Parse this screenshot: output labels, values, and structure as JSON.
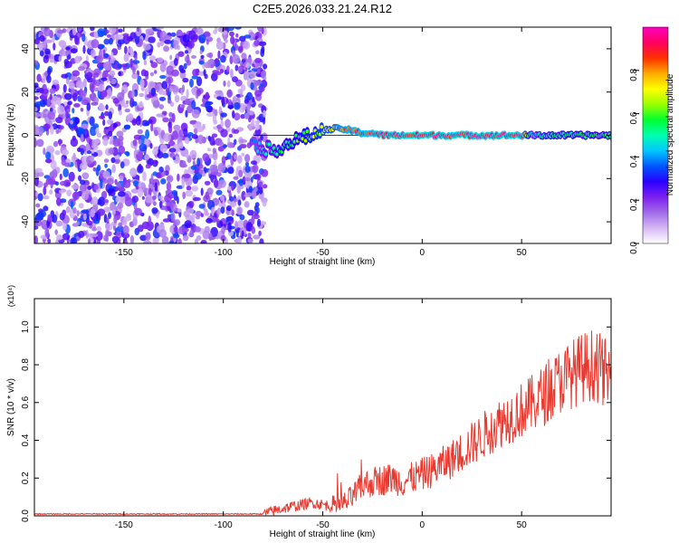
{
  "title": "C2E5.2026.033.21.24.R12",
  "chart_data": [
    {
      "type": "heatmap",
      "xlabel": "Height of straight line (km)",
      "ylabel": "Frequency (Hz)",
      "xlim": [
        -195,
        95
      ],
      "ylim": [
        -50,
        50
      ],
      "x_ticks": [
        -150,
        -100,
        -50,
        0,
        50
      ],
      "y_ticks": [
        -40,
        -20,
        0,
        20,
        40
      ],
      "colorbar": {
        "label": "Normalized spectral amplitude",
        "range": [
          0,
          1
        ],
        "ticks": [
          "0.0",
          "0.2",
          "0.4",
          "0.6",
          "0.8"
        ],
        "colors": [
          "#ffffff",
          "#d6b8f5",
          "#a06be8",
          "#7d1ff0",
          "#2a00ff",
          "#0055ff",
          "#00c8ff",
          "#00ffb0",
          "#00ff30",
          "#9aff00",
          "#ffff00",
          "#ffaa00",
          "#ff3000",
          "#ff0060",
          "#ff00c0"
        ]
      },
      "ridge": {
        "height_km": [
          -85,
          -80,
          -75,
          -70,
          -65,
          -60,
          -55,
          -50,
          -45,
          -40,
          -35,
          -30,
          -25,
          -20,
          -15,
          -10,
          -5,
          0,
          5,
          10,
          20,
          30,
          40,
          50,
          55,
          60,
          65,
          70,
          75,
          80,
          85,
          90,
          95
        ],
        "frequency_hz": [
          -4,
          -6,
          -7,
          -5,
          -3,
          -1,
          0,
          2,
          3,
          3,
          2,
          1,
          1,
          0,
          0,
          0,
          0,
          0,
          0,
          0,
          0,
          0,
          0,
          0,
          0,
          0,
          0,
          0,
          0,
          0,
          0,
          0,
          0
        ],
        "amplitude": [
          0.4,
          0.5,
          0.55,
          0.6,
          0.62,
          0.65,
          0.7,
          0.75,
          0.8,
          0.9,
          0.92,
          0.95,
          0.95,
          1,
          1,
          1,
          1,
          1,
          1,
          1,
          1,
          1,
          1,
          1,
          0.5,
          0.55,
          0.6,
          0.58,
          0.6,
          0.6,
          0.62,
          0.6,
          0.6
        ]
      },
      "noise_region_km": [
        -195,
        -85
      ]
    },
    {
      "type": "line",
      "xlabel": "Height of straight line (km)",
      "ylabel": "SNR (10 * v/v)",
      "y_multiplier": "(x10⁴)",
      "xlim": [
        -195,
        95
      ],
      "ylim": [
        0,
        1.15
      ],
      "x_ticks": [
        -150,
        -100,
        -50,
        0,
        50
      ],
      "y_ticks": [
        "0.0",
        "0.2",
        "0.4",
        "0.6",
        "0.8",
        "1.0"
      ],
      "series_color": "#e8392f",
      "x": [
        -195,
        -150,
        -100,
        -80,
        -70,
        -60,
        -55,
        -50,
        -45,
        -40,
        -35,
        -30,
        -25,
        -20,
        -15,
        -10,
        -5,
        0,
        5,
        10,
        15,
        20,
        25,
        30,
        35,
        40,
        45,
        50,
        55,
        60,
        65,
        70,
        75,
        80,
        85,
        90,
        95
      ],
      "y": [
        0.01,
        0.01,
        0.01,
        0.01,
        0.04,
        0.06,
        0.07,
        0.06,
        0.05,
        0.06,
        0.1,
        0.16,
        0.18,
        0.19,
        0.2,
        0.18,
        0.2,
        0.22,
        0.24,
        0.27,
        0.3,
        0.34,
        0.38,
        0.42,
        0.46,
        0.5,
        0.53,
        0.56,
        0.59,
        0.63,
        0.67,
        0.72,
        0.75,
        0.78,
        0.8,
        0.78,
        0.72
      ]
    }
  ]
}
